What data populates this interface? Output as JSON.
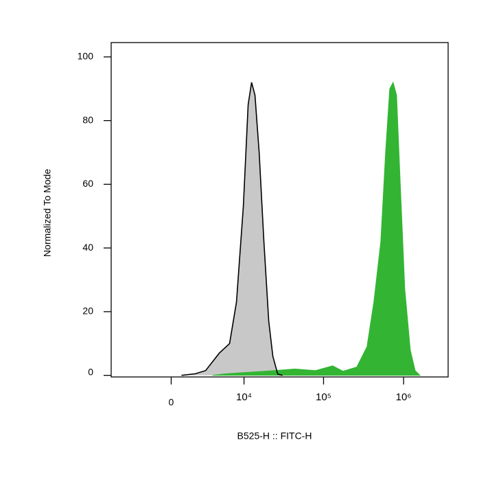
{
  "chart_data": {
    "type": "area",
    "x_label": "B525-H :: FITC-H",
    "y_label": "Normalized To Mode",
    "x_scale": {
      "type": "arcsinh",
      "cofactor": 2500
    },
    "xlim": [
      -6800,
      3600000
    ],
    "xticks": [
      0,
      {
        "value": 10000,
        "label": "10⁴"
      },
      {
        "value": 100000,
        "label": "10⁵"
      },
      {
        "value": 1000000,
        "label": "10⁶"
      }
    ],
    "ylim": [
      -0.5,
      104.5
    ],
    "yticks": [
      0,
      20,
      40,
      60,
      80,
      100
    ],
    "series": [
      {
        "color": "#c8c8c8",
        "line_color": "#000000",
        "x": [
          750,
          1870,
          2900,
          4680,
          6470,
          7980,
          9800,
          11300,
          12500,
          13800,
          15600,
          17900,
          20600,
          23200,
          26700,
          30700
        ],
        "values": [
          0,
          0.5,
          1.5,
          7,
          10,
          23,
          53,
          85,
          92,
          88,
          70,
          42,
          17,
          6,
          0.4,
          0
        ]
      },
      {
        "color": "#33b533",
        "x": [
          3730,
          5810,
          24200,
          43800,
          79300,
          130000,
          175000,
          260000,
          349000,
          425000,
          519000,
          596000,
          671000,
          740000,
          817000,
          902000,
          1035000,
          1212000,
          1393000,
          1600000
        ],
        "values": [
          0,
          0.5,
          1.5,
          2,
          1.5,
          3,
          1.3,
          2.6,
          9,
          23,
          42,
          70,
          90,
          92,
          88,
          62,
          27,
          8,
          1.5,
          0
        ]
      }
    ]
  }
}
